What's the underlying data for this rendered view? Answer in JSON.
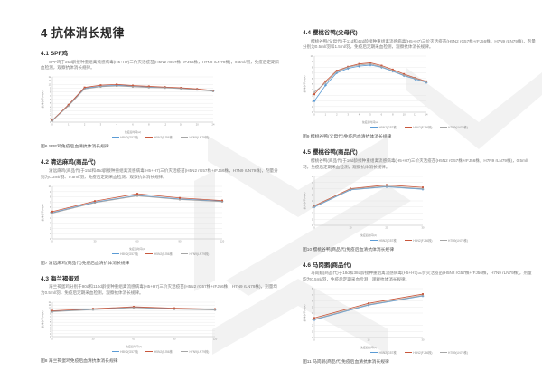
{
  "page": {
    "title": "4 抗体消长规律"
  },
  "sections": [
    {
      "heading": "4.1 SPF鸡",
      "body": "SPF鸡于21d龄接种重组禽流感病毒(H5+H7)三价灭活疫苗(H5N2 rG57株+rFJ56株，H7N9 rLN79株)，0.3ml/羽，免疫后定期采血检测，观察抗体消长规律。",
      "caption": "图6 SPF鸡免疫后血清抗体消长规律"
    },
    {
      "heading": "4.2 清远麻鸡(商品代)",
      "body": "清远麻鸡(商品代)于15d和45d龄接种重组禽流感病毒(H5+H7)三价灭活疫苗(H5N2 rG57株+rFJ56株，H7N9 rLN79株)，剂量分别为0.3ml/羽、0.5ml/羽，免疫后定期采血检测，观察抗体消长规律。",
      "caption": "图7 清远麻鸡(商品代)免疫后血清抗体消长规律"
    },
    {
      "heading": "4.3 海兰褐蛋鸡",
      "body": "海兰褐蛋鸡分别于90d和110d龄接种重组禽流感病毒(H5+H7)三价灭活疫苗(H5N2 rG57株+rFJ56株，H7N9 rLN79株)，剂量均为0.5ml/羽，免疫后定期采血检测，观察抗体消长规律。",
      "caption": "图8 海兰褐蛋鸡免疫后血清抗体消长规律"
    },
    {
      "heading": "4.4 樱桃谷鸭(父母代)",
      "body": "樱桃谷鸭(父母代)于11d和42d龄接种重组禽流感病毒(H5+H7)三价灭活疫苗(H5N2 rG57株+rFJ56株，H7N9 rLN79株)，剂量分别为0.5ml/羽和1.5ml/羽，免疫后定期采血检测，观察抗体消长规律。",
      "caption": "图9 樱桃谷鸭(父母代)免疫后血清抗体消长规律"
    },
    {
      "heading": "4.5 樱桃谷鸭(商品代)",
      "body": "樱桃谷鸭(商品代)于10d龄接种重组禽流感病毒(H5+H7)三价灭活疫苗(H5N2 rG57株+rFJ56株，H7N9 rLN79株)，0.5ml/羽，免疫后定期采血检测，观察抗体消长规律。",
      "caption": "图10 樱桃谷鸭(商品代)免疫后血清抗体消长规律"
    },
    {
      "heading": "4.6 马岗鹅(商品代)",
      "body": "马岗鹅(商品代)于18d和38d龄接种重组禽流感病毒(H5+H7)三价灭活疫苗(H5N2 rG57株+rFJ56株，H7N9 rLN79株)，剂量均为0.5ml/羽，免疫后定期采血检测，观察抗体消长规律。",
      "caption": "图11 马岗鹅(商品代)免疫后血清抗体消长规律"
    }
  ],
  "colors": {
    "series": [
      "#5b9bd5",
      "#c8573c",
      "#a6a6a6"
    ],
    "grid": "#e3e3e3",
    "axis": "#bfbfbf",
    "tick_text": "#8c8c8c",
    "watermark": "#f2f2f2"
  },
  "chart_data": [
    {
      "type": "line",
      "title": "图6 SPF鸡免疫后血清抗体消长规律",
      "xlabel": "免疫后时间(w)",
      "ylabel": "抗体水平(log2)",
      "ylim": [
        0,
        12
      ],
      "categories": [
        0,
        1,
        2,
        3,
        4,
        6,
        8,
        12,
        16,
        20,
        24
      ],
      "series": [
        {
          "name": "H5N2(G57株)",
          "values": [
            0.5,
            4.5,
            9.0,
            9.5,
            9.8,
            9.5,
            9.3,
            9.2,
            9.0,
            8.7,
            8.3
          ]
        },
        {
          "name": "H5N2(FJ56株)",
          "values": [
            0.5,
            4.6,
            9.2,
            9.8,
            10.0,
            9.7,
            9.5,
            9.3,
            9.1,
            8.8,
            8.4
          ]
        },
        {
          "name": "H7N9(LN79株)",
          "values": [
            0.4,
            4.3,
            8.8,
            9.4,
            9.6,
            9.4,
            9.2,
            9.1,
            8.9,
            8.6,
            8.2
          ]
        }
      ],
      "legend_position": "bottom",
      "grid": true
    },
    {
      "type": "line",
      "title": "图7 清远麻鸡(商品代)免疫后血清抗体消长规律",
      "xlabel": "免疫后时间(d)",
      "ylabel": "抗体水平(log2)",
      "ylim": [
        0,
        10
      ],
      "categories": [
        0,
        30,
        60,
        90,
        120
      ],
      "series": [
        {
          "name": "H5N2(G57株)",
          "values": [
            5.0,
            7.0,
            8.3,
            7.6,
            7.2
          ]
        },
        {
          "name": "H5N2(FJ56株)",
          "values": [
            5.2,
            7.2,
            8.6,
            7.8,
            7.3
          ]
        },
        {
          "name": "H7N9(LN79株)",
          "values": [
            4.9,
            6.9,
            8.2,
            7.5,
            7.1
          ]
        }
      ],
      "legend_position": "bottom",
      "grid": true
    },
    {
      "type": "line",
      "title": "图8 海兰褐蛋鸡免疫后血清抗体消长规律",
      "xlabel": "免疫后时间(d)",
      "ylabel": "抗体水平(log2)",
      "ylim": [
        0,
        12
      ],
      "categories": [
        0,
        30,
        60,
        90,
        120
      ],
      "series": [
        {
          "name": "H5N2(G57株)",
          "values": [
            8.8,
            9.5,
            10.2,
            9.7,
            9.4
          ]
        },
        {
          "name": "H5N2(FJ56株)",
          "values": [
            9.0,
            9.7,
            10.4,
            9.9,
            9.6
          ]
        },
        {
          "name": "H7N9(LN79株)",
          "values": [
            8.7,
            9.4,
            10.1,
            9.6,
            9.3
          ]
        }
      ],
      "legend_position": "bottom",
      "grid": true
    },
    {
      "type": "line",
      "title": "图9 樱桃谷鸭(父母代)免疫后血清抗体消长规律",
      "xlabel": "免疫后时间(w)",
      "ylabel": "抗体水平(log2)",
      "ylim": [
        0,
        10
      ],
      "categories": [
        0,
        1,
        2,
        3,
        4,
        5,
        6,
        8,
        10,
        12,
        14
      ],
      "series": [
        {
          "name": "H5N2(G57株)",
          "values": [
            2.0,
            4.8,
            7.0,
            7.8,
            8.2,
            8.4,
            8.0,
            7.3,
            6.5,
            5.9,
            5.3
          ]
        },
        {
          "name": "H5N2(FJ56株)",
          "values": [
            3.2,
            5.5,
            7.4,
            8.1,
            8.6,
            8.8,
            8.3,
            7.6,
            6.8,
            6.1,
            5.5
          ]
        },
        {
          "name": "H7N9(LN79株)",
          "values": [
            3.6,
            5.2,
            7.2,
            8.0,
            8.4,
            8.6,
            8.1,
            7.4,
            6.6,
            6.0,
            5.4
          ]
        }
      ],
      "legend_position": "bottom",
      "grid": true
    },
    {
      "type": "line",
      "title": "图10 樱桃谷鸭(商品代)免疫后血清抗体消长规律",
      "xlabel": "免疫后时间(d)",
      "ylabel": "抗体水平(log2)",
      "ylim": [
        0,
        8
      ],
      "categories": [
        0,
        10,
        20,
        30
      ],
      "series": [
        {
          "name": "H5N2(G57株)",
          "values": [
            3.0,
            5.8,
            6.3,
            5.9
          ]
        },
        {
          "name": "H5N2(FJ56株)",
          "values": [
            3.2,
            6.0,
            6.6,
            6.2
          ]
        },
        {
          "name": "H7N9(LN79株)",
          "values": [
            3.1,
            5.9,
            6.4,
            6.0
          ]
        }
      ],
      "legend_position": "bottom",
      "grid": true
    },
    {
      "type": "line",
      "title": "图11 马岗鹅(商品代)免疫后血清抗体消长规律",
      "xlabel": "免疫后时间(d)",
      "ylabel": "抗体水平(log2)",
      "ylim": [
        0,
        8
      ],
      "categories": [
        0,
        15,
        30
      ],
      "series": [
        {
          "name": "H5N2(G57株)",
          "values": [
            2.9,
            5.3,
            6.8
          ]
        },
        {
          "name": "H5N2(FJ56株)",
          "values": [
            3.2,
            5.6,
            7.1
          ]
        },
        {
          "name": "H7N9(LN79株)",
          "values": [
            3.0,
            5.4,
            6.9
          ]
        }
      ],
      "legend_position": "bottom",
      "grid": true
    }
  ]
}
